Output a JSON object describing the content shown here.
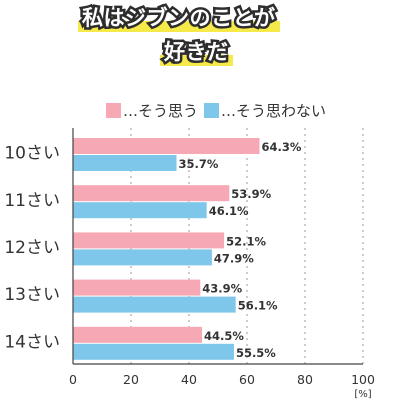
{
  "title_lines": [
    "私はジブンのことが",
    "好きだ"
  ],
  "colors": {
    "yes": "#f6a9b4",
    "no": "#7ec7ea",
    "grid": "#cccccc",
    "axis": "#444444"
  },
  "chart_data": {
    "type": "bar",
    "orientation": "horizontal",
    "categories": [
      "10さい",
      "11さい",
      "12さい",
      "13さい",
      "14さい"
    ],
    "series": [
      {
        "name": "…そう思う",
        "values": [
          64.3,
          53.9,
          52.1,
          43.9,
          44.5
        ],
        "labels": [
          "64.3%",
          "53.9%",
          "52.1%",
          "43.9%",
          "44.5%"
        ]
      },
      {
        "name": "…そう思わない",
        "values": [
          35.7,
          46.1,
          47.9,
          56.1,
          55.5
        ],
        "labels": [
          "35.7%",
          "46.1%",
          "47.9%",
          "56.1%",
          "55.5%"
        ]
      }
    ],
    "xlim": [
      0,
      100
    ],
    "xticks": [
      "0",
      "20",
      "40",
      "60",
      "80",
      "100"
    ],
    "xlabel": "[%]",
    "legend_position": "top",
    "grid": true
  }
}
